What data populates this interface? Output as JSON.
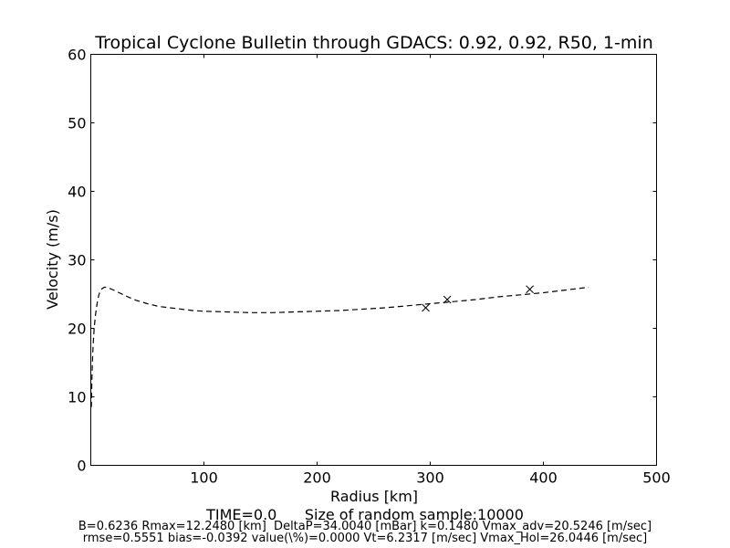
{
  "chart_data": {
    "type": "line",
    "title": "Tropical Cyclone Bulletin through GDACS: 0.92, 0.92, R50, 1-min",
    "xlabel": "Radius [km]",
    "ylabel": "Velocity (m/s)",
    "xlim": [
      0,
      500
    ],
    "ylim": [
      0,
      60
    ],
    "xticks": [
      100,
      200,
      300,
      400,
      500
    ],
    "yticks": [
      0,
      10,
      20,
      30,
      40,
      50,
      60
    ],
    "grid": false,
    "series": [
      {
        "style": "dashed",
        "color": "#000000",
        "x": [
          0.5,
          1,
          1.5,
          2,
          3,
          4,
          5,
          6,
          7,
          8,
          10,
          12,
          14,
          16,
          20,
          25,
          30,
          40,
          50,
          60,
          70,
          80,
          90,
          100,
          120,
          140,
          160,
          180,
          200,
          220,
          240,
          260,
          280,
          300,
          320,
          340,
          360,
          380,
          400,
          420,
          440
        ],
        "y": [
          8.5,
          12.5,
          15.5,
          17.5,
          20.0,
          21.8,
          23.0,
          24.0,
          24.8,
          25.3,
          25.8,
          26.0,
          26.0,
          25.9,
          25.6,
          25.2,
          24.8,
          24.1,
          23.6,
          23.2,
          23.0,
          22.8,
          22.6,
          22.5,
          22.4,
          22.3,
          22.3,
          22.4,
          22.5,
          22.6,
          22.8,
          23.0,
          23.3,
          23.6,
          23.9,
          24.2,
          24.6,
          24.9,
          25.2,
          25.6,
          26.0
        ]
      },
      {
        "style": "markers",
        "marker": "x",
        "color": "#000000",
        "x": [
          296,
          315,
          388
        ],
        "y": [
          23.0,
          24.2,
          25.7
        ]
      }
    ]
  },
  "footer": {
    "time_line": "TIME=0.0      Size of random sample:10000",
    "params_line": "B=0.6236 Rmax=12.2480 [km]  DeltaP=34.0040 [mBar] k=0.1480 Vmax_adv=20.5246 [m/sec]",
    "stats_line": "rmse=0.5551 bias=-0.0392 value(\\%)=0.0000 Vt=6.2317 [m/sec] Vmax_Hol=26.0446 [m/sec]"
  }
}
